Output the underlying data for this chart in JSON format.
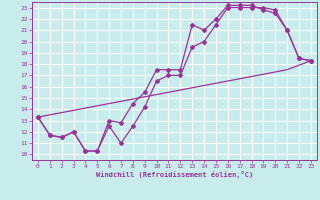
{
  "xlabel": "Windchill (Refroidissement éolien,°C)",
  "bg_color": "#c8ecec",
  "grid_color": "#b0d8d8",
  "line_color": "#993399",
  "xlim": [
    -0.5,
    23.5
  ],
  "ylim": [
    9.5,
    23.5
  ],
  "xticks": [
    0,
    1,
    2,
    3,
    4,
    5,
    6,
    7,
    8,
    9,
    10,
    11,
    12,
    13,
    14,
    15,
    16,
    17,
    18,
    19,
    20,
    21,
    22,
    23
  ],
  "yticks": [
    10,
    11,
    12,
    13,
    14,
    15,
    16,
    17,
    18,
    19,
    20,
    21,
    22,
    23
  ],
  "line1_x": [
    0,
    1,
    2,
    3,
    4,
    5,
    6,
    7,
    8,
    9,
    10,
    11,
    12,
    13,
    14,
    15,
    16,
    17,
    18,
    19,
    20,
    21,
    22,
    23
  ],
  "line1_y": [
    13.3,
    11.7,
    11.5,
    12.0,
    10.3,
    10.3,
    12.5,
    11.0,
    12.5,
    14.2,
    16.5,
    17.0,
    17.0,
    19.5,
    20.0,
    21.5,
    23.0,
    23.0,
    23.0,
    23.0,
    22.8,
    21.0,
    18.5,
    18.3
  ],
  "line2_x": [
    0,
    1,
    2,
    3,
    4,
    5,
    6,
    7,
    8,
    9,
    10,
    11,
    12,
    13,
    14,
    15,
    16,
    17,
    18,
    19,
    20,
    21,
    22,
    23
  ],
  "line2_y": [
    13.3,
    11.7,
    11.5,
    12.0,
    10.3,
    10.3,
    13.0,
    12.8,
    14.5,
    15.5,
    17.5,
    17.5,
    17.5,
    21.5,
    21.0,
    22.0,
    23.2,
    23.2,
    23.2,
    22.8,
    22.5,
    21.0,
    18.5,
    18.3
  ],
  "line3_x": [
    0,
    1,
    2,
    3,
    4,
    5,
    6,
    7,
    8,
    9,
    10,
    11,
    12,
    13,
    14,
    15,
    16,
    17,
    18,
    19,
    20,
    21,
    22,
    23
  ],
  "line3_y": [
    13.3,
    13.5,
    13.7,
    13.9,
    14.1,
    14.3,
    14.5,
    14.7,
    14.9,
    15.1,
    15.3,
    15.5,
    15.7,
    15.9,
    16.1,
    16.3,
    16.5,
    16.7,
    16.9,
    17.1,
    17.3,
    17.5,
    17.9,
    18.3
  ]
}
